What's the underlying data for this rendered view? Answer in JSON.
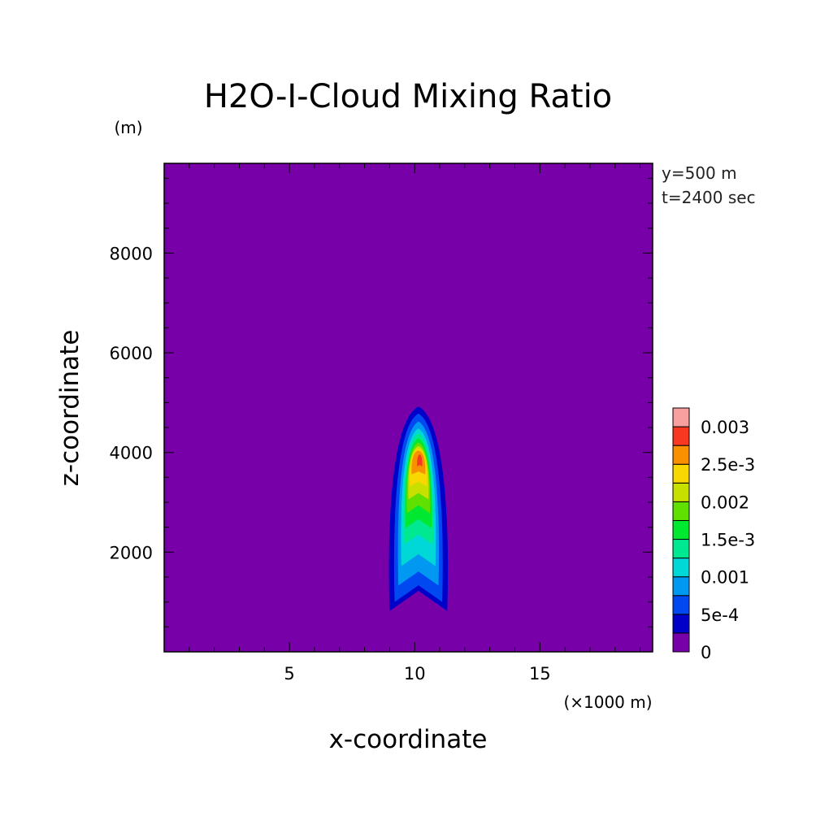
{
  "chart_data": {
    "type": "heatmap",
    "title": "H2O-I-Cloud Mixing Ratio",
    "xlabel": "x-coordinate",
    "ylabel": "z-coordinate",
    "x_unit": "(×1000 m)",
    "y_unit": "(m)",
    "xlim": [
      0,
      19.5
    ],
    "ylim": [
      0,
      9800
    ],
    "x_ticks": [
      5,
      10,
      15
    ],
    "y_ticks": [
      2000,
      4000,
      6000,
      8000
    ],
    "x_tick_labels": [
      "5",
      "10",
      "15"
    ],
    "y_tick_labels": [
      "2000",
      "4000",
      "6000",
      "8000"
    ],
    "grid": false,
    "annotations": [
      "y=500 m",
      "t=2400 sec"
    ],
    "colorbar": {
      "levels": [
        0,
        0.00025,
        0.0005,
        0.00075,
        0.001,
        0.00125,
        0.0015,
        0.00175,
        0.002,
        0.00225,
        0.0025,
        0.00275,
        0.003
      ],
      "colors": [
        "#7800a8",
        "#0000c8",
        "#0048f0",
        "#0098f0",
        "#00d8d8",
        "#00e890",
        "#00e830",
        "#60e000",
        "#c8e000",
        "#f8d800",
        "#f89000",
        "#f83820",
        "#f8a0a0"
      ],
      "tick_values": [
        0,
        0.0005,
        0.001,
        0.0015,
        0.002,
        0.0025,
        0.003
      ],
      "tick_labels": [
        "0",
        "5e-4",
        "0.001",
        "1.5e-3",
        "0.002",
        "2.5e-3",
        "0.003"
      ]
    },
    "contours": [
      {
        "level": 0.00025,
        "cx": 10.15,
        "z_top": 4920,
        "z_bottom": 820,
        "half_width": 1.15
      },
      {
        "level": 0.0005,
        "cx": 10.15,
        "z_top": 4780,
        "z_bottom": 1000,
        "half_width": 0.95
      },
      {
        "level": 0.00075,
        "cx": 10.15,
        "z_top": 4620,
        "z_bottom": 1330,
        "half_width": 0.8
      },
      {
        "level": 0.001,
        "cx": 10.15,
        "z_top": 4480,
        "z_bottom": 1720,
        "half_width": 0.68
      },
      {
        "level": 0.00125,
        "cx": 10.15,
        "z_top": 4380,
        "z_bottom": 2150,
        "half_width": 0.58
      },
      {
        "level": 0.0015,
        "cx": 10.15,
        "z_top": 4280,
        "z_bottom": 2480,
        "half_width": 0.52
      },
      {
        "level": 0.00175,
        "cx": 10.15,
        "z_top": 4200,
        "z_bottom": 2780,
        "half_width": 0.46
      },
      {
        "level": 0.002,
        "cx": 10.15,
        "z_top": 4130,
        "z_bottom": 3060,
        "half_width": 0.4
      },
      {
        "level": 0.00225,
        "cx": 10.15,
        "z_top": 4080,
        "z_bottom": 3320,
        "half_width": 0.34
      },
      {
        "level": 0.0025,
        "cx": 10.15,
        "z_top": 4040,
        "z_bottom": 3560,
        "half_width": 0.27
      },
      {
        "level": 0.00275,
        "cx": 10.2,
        "z_top": 3960,
        "z_bottom": 3720,
        "half_width": 0.1
      }
    ]
  }
}
